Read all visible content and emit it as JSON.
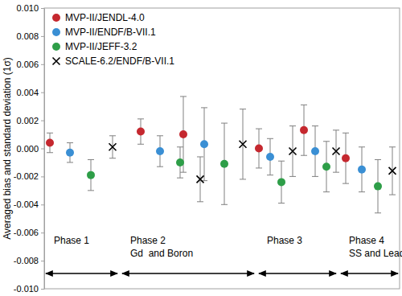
{
  "chart_data": {
    "type": "scatter",
    "ylabel": "Averaged bias and standard deviation (1σ)",
    "xlim": [
      0,
      442
    ],
    "ylim": [
      -0.01,
      0.01
    ],
    "yticks": [
      {
        "value": -0.01,
        "label": "-0.010"
      },
      {
        "value": -0.008,
        "label": "-0.008"
      },
      {
        "value": -0.006,
        "label": "-0.006"
      },
      {
        "value": -0.004,
        "label": "-0.004"
      },
      {
        "value": -0.002,
        "label": "-0.002"
      },
      {
        "value": 0,
        "label": "0.000"
      },
      {
        "value": 0.002,
        "label": "0.002"
      },
      {
        "value": 0.004,
        "label": "0.004"
      },
      {
        "value": 0.006,
        "label": "0.006"
      },
      {
        "value": 0.008,
        "label": "0.008"
      },
      {
        "value": 0.01,
        "label": "0.010"
      }
    ],
    "tick_labels": "y",
    "grid": false,
    "legend": "top-left",
    "series": [
      {
        "name": "MVP-II/JENDL-4.0",
        "color": "#c5282f",
        "marker": "circle",
        "x": [
          7,
          120,
          173,
          267,
          323,
          375
        ],
        "values": [
          0.0004,
          0.0012,
          0.001,
          0.0,
          0.0013,
          -0.0007
        ],
        "errors": [
          0.0007,
          0.0009,
          0.0027,
          0.0014,
          0.0018,
          0.0018
        ]
      },
      {
        "name": "MVP-II/ENDF/B-VII.1",
        "color": "#3a8fd4",
        "marker": "circle",
        "x": [
          32,
          144,
          199,
          281,
          337,
          395
        ],
        "values": [
          -0.0003,
          -0.0002,
          0.0003,
          -0.0006,
          -0.0002,
          -0.0015
        ],
        "errors": [
          0.0007,
          0.0011,
          0.0026,
          0.0013,
          0.0018,
          0.0016
        ]
      },
      {
        "name": "MVP-II/JEFF-3.2",
        "color": "#2e9e48",
        "marker": "circle",
        "x": [
          58,
          169,
          224,
          295,
          351,
          415
        ],
        "values": [
          -0.0019,
          -0.001,
          -0.0011,
          -0.0024,
          -0.0013,
          -0.0027
        ],
        "errors": [
          0.0011,
          0.0011,
          0.0029,
          0.0015,
          0.0018,
          0.0019
        ]
      },
      {
        "name": "SCALE-6.2/ENDF/B-VII.1",
        "color": "#000000",
        "marker": "x",
        "x": [
          85,
          194,
          247,
          309,
          363,
          433
        ],
        "values": [
          0.0001,
          -0.0022,
          0.0003,
          -0.0002,
          -0.0002,
          -0.0016
        ],
        "errors": [
          0.0008,
          0.0016,
          0.0025,
          0.0018,
          0.0015,
          0.0017
        ]
      }
    ],
    "phases": [
      {
        "label": "Phase 1",
        "xrange": [
          0,
          93
        ]
      },
      {
        "label": "Phase 2",
        "sublabel": "Gd  and Boron",
        "xrange": [
          95,
          263
        ]
      },
      {
        "label": "Phase 3",
        "xrange": [
          265,
          365
        ]
      },
      {
        "label": "Phase 4",
        "sublabel": "SS and Lead",
        "xrange": [
          367,
          442
        ]
      }
    ]
  }
}
